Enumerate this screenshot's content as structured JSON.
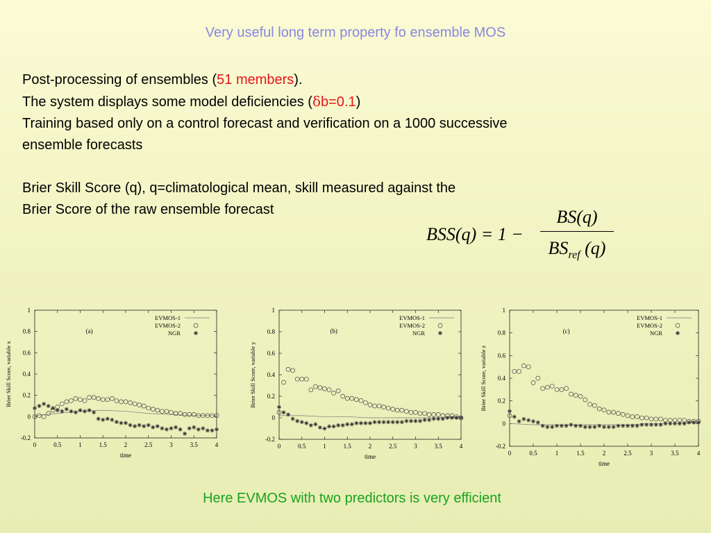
{
  "title": "Very useful long term property fo ensemble MOS",
  "body": {
    "line1_pre": "Post-processing of ensembles (",
    "line1_hl": "51 members",
    "line1_post": ").",
    "line2_pre": "The system displays some model deficiencies (",
    "line2_delta": "δ",
    "line2_hl": "b=0.1",
    "line2_post": ")",
    "line3": "Training based only on a control forecast and verification on a 1000 successive",
    "line4": "ensemble forecasts",
    "line5": "Brier Skill Score (q), q=climatological mean, skill measured against the",
    "line6": "Brier Score of the raw ensemble forecast"
  },
  "formula": {
    "lhs": "BSS(q) = 1 −",
    "numerator": "BS(q)",
    "denominator_main": "BS",
    "denominator_sub": "ref",
    "denominator_arg": "(q)"
  },
  "colors": {
    "title": "#8a86e0",
    "highlight": "#e8151a",
    "conclusion": "#1aa31e"
  },
  "chart_data": [
    {
      "type": "scatter",
      "panel_label": "(a)",
      "xlabel": "time",
      "ylabel": "Brier Skill Score, variable x",
      "xlim": [
        0,
        4
      ],
      "ylim": [
        -0.2,
        1
      ],
      "xticks": [
        "0",
        "0.5",
        "1",
        "1.5",
        "2",
        "2.5",
        "3",
        "3.5",
        "4"
      ],
      "yticks": [
        "-0.2",
        "0",
        "0.2",
        "0.4",
        "0.6",
        "0.8",
        "1"
      ],
      "legend_position": "top-right",
      "series": [
        {
          "name": "EVMOS-1",
          "style": "line",
          "x": [
            0,
            0.5,
            1,
            1.5,
            2,
            2.5,
            3,
            3.5,
            4
          ],
          "y": [
            0.01,
            0.03,
            0.05,
            0.06,
            0.05,
            0.03,
            0.02,
            0.01,
            0.01
          ]
        },
        {
          "name": "EVMOS-2",
          "style": "circle",
          "x": [
            0,
            0.1,
            0.2,
            0.3,
            0.4,
            0.5,
            0.6,
            0.7,
            0.8,
            0.9,
            1.0,
            1.1,
            1.2,
            1.3,
            1.4,
            1.5,
            1.6,
            1.7,
            1.8,
            1.9,
            2.0,
            2.1,
            2.2,
            2.3,
            2.4,
            2.5,
            2.6,
            2.7,
            2.8,
            2.9,
            3.0,
            3.1,
            3.2,
            3.3,
            3.4,
            3.5,
            3.6,
            3.7,
            3.8,
            3.9,
            4.0
          ],
          "y": [
            0.0,
            0.01,
            0.0,
            0.03,
            0.06,
            0.09,
            0.12,
            0.14,
            0.15,
            0.17,
            0.16,
            0.15,
            0.18,
            0.18,
            0.17,
            0.16,
            0.16,
            0.17,
            0.15,
            0.14,
            0.14,
            0.13,
            0.12,
            0.11,
            0.1,
            0.08,
            0.07,
            0.06,
            0.05,
            0.05,
            0.04,
            0.03,
            0.03,
            0.02,
            0.02,
            0.02,
            0.01,
            0.01,
            0.01,
            0.01,
            0.01
          ]
        },
        {
          "name": "NGR",
          "style": "star",
          "x": [
            0,
            0.1,
            0.2,
            0.3,
            0.4,
            0.5,
            0.6,
            0.7,
            0.8,
            0.9,
            1.0,
            1.1,
            1.2,
            1.3,
            1.4,
            1.5,
            1.6,
            1.7,
            1.8,
            1.9,
            2.0,
            2.1,
            2.2,
            2.3,
            2.4,
            2.5,
            2.6,
            2.7,
            2.8,
            2.9,
            3.0,
            3.1,
            3.2,
            3.3,
            3.4,
            3.5,
            3.6,
            3.7,
            3.8,
            3.9,
            4.0
          ],
          "y": [
            0.08,
            0.1,
            0.12,
            0.1,
            0.08,
            0.06,
            0.05,
            0.07,
            0.05,
            0.04,
            0.06,
            0.05,
            0.06,
            0.04,
            -0.02,
            -0.03,
            -0.02,
            -0.03,
            -0.05,
            -0.06,
            -0.06,
            -0.08,
            -0.09,
            -0.08,
            -0.09,
            -0.08,
            -0.1,
            -0.09,
            -0.11,
            -0.12,
            -0.11,
            -0.1,
            -0.12,
            -0.16,
            -0.11,
            -0.1,
            -0.12,
            -0.11,
            -0.13,
            -0.13,
            -0.12
          ]
        }
      ]
    },
    {
      "type": "scatter",
      "panel_label": "(b)",
      "xlabel": "time",
      "ylabel": "Brier Skill Score, variable y",
      "xlim": [
        0,
        4
      ],
      "ylim": [
        -0.2,
        1
      ],
      "xticks": [
        "0",
        "0.5",
        "1",
        "1.5",
        "2",
        "2.5",
        "3",
        "3.5",
        "4"
      ],
      "yticks": [
        "-0.2",
        "0",
        "0.2",
        "0.4",
        "0.6",
        "0.8",
        "1"
      ],
      "legend_position": "top-right",
      "series": [
        {
          "name": "EVMOS-1",
          "style": "line",
          "x": [
            0,
            0.5,
            1,
            1.5,
            2,
            2.5,
            3,
            3.5,
            4
          ],
          "y": [
            0.02,
            0.02,
            0.01,
            0.01,
            0.0,
            0.0,
            0.0,
            0.0,
            0.01
          ]
        },
        {
          "name": "EVMOS-2",
          "style": "circle",
          "x": [
            0,
            0.1,
            0.2,
            0.3,
            0.4,
            0.5,
            0.6,
            0.7,
            0.8,
            0.9,
            1.0,
            1.1,
            1.2,
            1.3,
            1.4,
            1.5,
            1.6,
            1.7,
            1.8,
            1.9,
            2.0,
            2.1,
            2.2,
            2.3,
            2.4,
            2.5,
            2.6,
            2.7,
            2.8,
            2.9,
            3.0,
            3.1,
            3.2,
            3.3,
            3.4,
            3.5,
            3.6,
            3.7,
            3.8,
            3.9,
            4.0
          ],
          "y": [
            0.05,
            0.33,
            0.45,
            0.44,
            0.36,
            0.36,
            0.36,
            0.26,
            0.29,
            0.28,
            0.27,
            0.26,
            0.23,
            0.25,
            0.2,
            0.18,
            0.18,
            0.17,
            0.16,
            0.14,
            0.12,
            0.11,
            0.11,
            0.1,
            0.09,
            0.08,
            0.07,
            0.07,
            0.06,
            0.05,
            0.05,
            0.04,
            0.04,
            0.03,
            0.03,
            0.03,
            0.02,
            0.02,
            0.02,
            0.01,
            0.0
          ]
        },
        {
          "name": "NGR",
          "style": "star",
          "x": [
            0,
            0.1,
            0.2,
            0.3,
            0.4,
            0.5,
            0.6,
            0.7,
            0.8,
            0.9,
            1.0,
            1.1,
            1.2,
            1.3,
            1.4,
            1.5,
            1.6,
            1.7,
            1.8,
            1.9,
            2.0,
            2.1,
            2.2,
            2.3,
            2.4,
            2.5,
            2.6,
            2.7,
            2.8,
            2.9,
            3.0,
            3.1,
            3.2,
            3.3,
            3.4,
            3.5,
            3.6,
            3.7,
            3.8,
            3.9,
            4.0
          ],
          "y": [
            0.1,
            0.05,
            0.03,
            -0.01,
            -0.03,
            -0.04,
            -0.05,
            -0.07,
            -0.06,
            -0.09,
            -0.1,
            -0.08,
            -0.08,
            -0.07,
            -0.07,
            -0.06,
            -0.06,
            -0.05,
            -0.05,
            -0.05,
            -0.05,
            -0.04,
            -0.04,
            -0.04,
            -0.04,
            -0.04,
            -0.04,
            -0.04,
            -0.03,
            -0.03,
            -0.03,
            -0.03,
            -0.02,
            -0.02,
            -0.01,
            -0.01,
            -0.01,
            0.0,
            0.0,
            0.0,
            0.0
          ]
        }
      ]
    },
    {
      "type": "scatter",
      "panel_label": "(c)",
      "xlabel": "time",
      "ylabel": "Brier Skill Score, variable z",
      "xlim": [
        0,
        4
      ],
      "ylim": [
        -0.2,
        1
      ],
      "xticks": [
        "0",
        "0.5",
        "1",
        "1.5",
        "2",
        "2.5",
        "3",
        "3.5",
        "4"
      ],
      "yticks": [
        "-0.2",
        "0",
        "0.2",
        "0.4",
        "0.6",
        "0.8",
        "1"
      ],
      "legend_position": "top-right",
      "series": [
        {
          "name": "EVMOS-1",
          "style": "line",
          "x": [
            0,
            0.5,
            1,
            1.5,
            2,
            2.5,
            3,
            3.5,
            4
          ],
          "y": [
            0.0,
            -0.01,
            -0.01,
            -0.01,
            -0.01,
            -0.01,
            0.0,
            0.0,
            0.01
          ]
        },
        {
          "name": "EVMOS-2",
          "style": "circle",
          "x": [
            0,
            0.1,
            0.2,
            0.3,
            0.4,
            0.5,
            0.6,
            0.7,
            0.8,
            0.9,
            1.0,
            1.1,
            1.2,
            1.3,
            1.4,
            1.5,
            1.6,
            1.7,
            1.8,
            1.9,
            2.0,
            2.1,
            2.2,
            2.3,
            2.4,
            2.5,
            2.6,
            2.7,
            2.8,
            2.9,
            3.0,
            3.1,
            3.2,
            3.3,
            3.4,
            3.5,
            3.6,
            3.7,
            3.8,
            3.9,
            4.0
          ],
          "y": [
            0.07,
            0.46,
            0.46,
            0.51,
            0.5,
            0.36,
            0.4,
            0.31,
            0.32,
            0.33,
            0.3,
            0.3,
            0.31,
            0.26,
            0.25,
            0.24,
            0.21,
            0.17,
            0.16,
            0.13,
            0.12,
            0.1,
            0.1,
            0.09,
            0.08,
            0.07,
            0.06,
            0.06,
            0.05,
            0.05,
            0.04,
            0.04,
            0.04,
            0.03,
            0.03,
            0.03,
            0.03,
            0.03,
            0.02,
            0.02,
            0.02
          ]
        },
        {
          "name": "NGR",
          "style": "star",
          "x": [
            0,
            0.1,
            0.2,
            0.3,
            0.4,
            0.5,
            0.6,
            0.7,
            0.8,
            0.9,
            1.0,
            1.1,
            1.2,
            1.3,
            1.4,
            1.5,
            1.6,
            1.7,
            1.8,
            1.9,
            2.0,
            2.1,
            2.2,
            2.3,
            2.4,
            2.5,
            2.6,
            2.7,
            2.8,
            2.9,
            3.0,
            3.1,
            3.2,
            3.3,
            3.4,
            3.5,
            3.6,
            3.7,
            3.8,
            3.9,
            4.0
          ],
          "y": [
            0.11,
            0.06,
            0.02,
            0.04,
            0.03,
            0.02,
            0.01,
            -0.02,
            -0.03,
            -0.03,
            -0.02,
            -0.02,
            -0.02,
            -0.01,
            -0.02,
            -0.02,
            -0.03,
            -0.03,
            -0.03,
            -0.02,
            -0.03,
            -0.03,
            -0.03,
            -0.02,
            -0.02,
            -0.02,
            -0.02,
            -0.02,
            -0.01,
            -0.01,
            -0.01,
            -0.01,
            -0.01,
            0.0,
            0.0,
            0.0,
            0.0,
            0.0,
            0.01,
            0.01,
            0.01
          ]
        }
      ]
    }
  ],
  "conclusion": "Here EVMOS with two predictors is very efficient"
}
